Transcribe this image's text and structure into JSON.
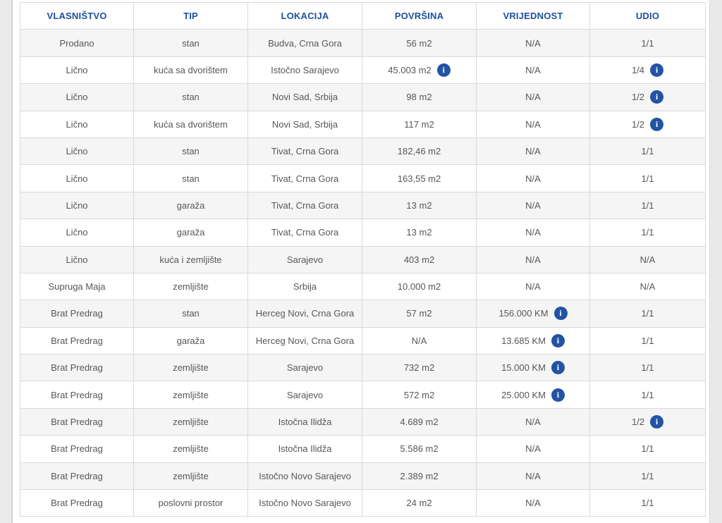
{
  "colors": {
    "header_text": "#1d4f9e",
    "cell_text": "#575757",
    "border": "#d9d9d9",
    "row_alt_bg": "#f5f5f5",
    "row_bg": "#ffffff",
    "info_icon_bg": "#2353a3",
    "gutter_bg": "#ebebeb"
  },
  "icons": {
    "info_glyph": "i",
    "info_name": "info-icon"
  },
  "table": {
    "columns": [
      {
        "key": "vlasnistvo",
        "label": "VLASNIŠTVO"
      },
      {
        "key": "tip",
        "label": "TIP"
      },
      {
        "key": "lokacija",
        "label": "LOKACIJA"
      },
      {
        "key": "povrsina",
        "label": "POVRŠINA"
      },
      {
        "key": "vrijednost",
        "label": "VRIJEDNOST"
      },
      {
        "key": "udio",
        "label": "UDIO"
      }
    ],
    "rows": [
      {
        "vlasnistvo": "Prodano",
        "tip": "stan",
        "lokacija": "Budva, Crna Gora",
        "povrsina": "56 m2",
        "vrijednost": "N/A",
        "udio": "1/1"
      },
      {
        "vlasnistvo": "Lično",
        "tip": "kuća sa dvorištem",
        "lokacija": "Istočno Sarajevo",
        "povrsina": "45.003 m2",
        "povrsina_info": true,
        "vrijednost": "N/A",
        "udio": "1/4",
        "udio_info": true
      },
      {
        "vlasnistvo": "Lično",
        "tip": "stan",
        "lokacija": "Novi Sad, Srbija",
        "povrsina": "98 m2",
        "vrijednost": "N/A",
        "udio": "1/2",
        "udio_info": true
      },
      {
        "vlasnistvo": "Lično",
        "tip": "kuća sa dvorištem",
        "lokacija": "Novi Sad, Srbija",
        "povrsina": "117 m2",
        "vrijednost": "N/A",
        "udio": "1/2",
        "udio_info": true
      },
      {
        "vlasnistvo": "Lično",
        "tip": "stan",
        "lokacija": "Tivat, Crna Gora",
        "povrsina": "182,46 m2",
        "vrijednost": "N/A",
        "udio": "1/1"
      },
      {
        "vlasnistvo": "Lično",
        "tip": "stan",
        "lokacija": "Tivat, Crna Gora",
        "povrsina": "163,55 m2",
        "vrijednost": "N/A",
        "udio": "1/1"
      },
      {
        "vlasnistvo": "Lično",
        "tip": "garaža",
        "lokacija": "Tivat, Crna Gora",
        "povrsina": "13 m2",
        "vrijednost": "N/A",
        "udio": "1/1"
      },
      {
        "vlasnistvo": "Lično",
        "tip": "garaža",
        "lokacija": "Tivat, Crna Gora",
        "povrsina": "13 m2",
        "vrijednost": "N/A",
        "udio": "1/1"
      },
      {
        "vlasnistvo": "Lično",
        "tip": "kuća i zemljište",
        "lokacija": "Sarajevo",
        "povrsina": "403 m2",
        "vrijednost": "N/A",
        "udio": "N/A"
      },
      {
        "vlasnistvo": "Supruga Maja",
        "tip": "zemljište",
        "lokacija": "Srbija",
        "povrsina": "10.000 m2",
        "vrijednost": "N/A",
        "udio": "N/A"
      },
      {
        "vlasnistvo": "Brat Predrag",
        "tip": "stan",
        "lokacija": "Herceg Novi, Crna Gora",
        "povrsina": "57 m2",
        "vrijednost": "156.000 KM",
        "vrijednost_info": true,
        "udio": "1/1"
      },
      {
        "vlasnistvo": "Brat Predrag",
        "tip": "garaža",
        "lokacija": "Herceg Novi, Crna Gora",
        "povrsina": "N/A",
        "vrijednost": "13.685 KM",
        "vrijednost_info": true,
        "udio": "1/1"
      },
      {
        "vlasnistvo": "Brat Predrag",
        "tip": "zemljište",
        "lokacija": "Sarajevo",
        "povrsina": "732 m2",
        "vrijednost": "15.000 KM",
        "vrijednost_info": true,
        "udio": "1/1"
      },
      {
        "vlasnistvo": "Brat Predrag",
        "tip": "zemljište",
        "lokacija": "Sarajevo",
        "povrsina": "572 m2",
        "vrijednost": "25.000 KM",
        "vrijednost_info": true,
        "udio": "1/1"
      },
      {
        "vlasnistvo": "Brat Predrag",
        "tip": "zemljište",
        "lokacija": "Istočna Ilidža",
        "povrsina": "4.689 m2",
        "vrijednost": "N/A",
        "udio": "1/2",
        "udio_info": true
      },
      {
        "vlasnistvo": "Brat Predrag",
        "tip": "zemljište",
        "lokacija": "Istočna Ilidža",
        "povrsina": "5.586 m2",
        "vrijednost": "N/A",
        "udio": "1/1"
      },
      {
        "vlasnistvo": "Brat Predrag",
        "tip": "zemljište",
        "lokacija": "Istočno Novo Sarajevo",
        "povrsina": "2.389 m2",
        "vrijednost": "N/A",
        "udio": "1/1"
      },
      {
        "vlasnistvo": "Brat Predrag",
        "tip": "poslovni prostor",
        "lokacija": "Istočno Novo Sarajevo",
        "povrsina": "24 m2",
        "vrijednost": "N/A",
        "udio": "1/1"
      }
    ]
  }
}
